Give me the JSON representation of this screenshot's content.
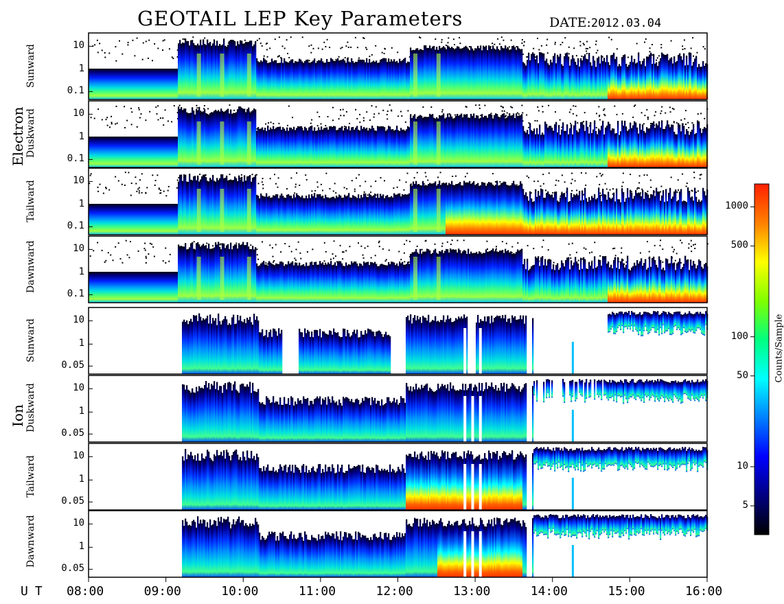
{
  "title": "GEOTAIL LEP Key Parameters",
  "date_label": "DATE:",
  "date_value": "2012.03.04",
  "ut_label": "UT",
  "chart_data": {
    "type": "heatmap",
    "title": "GEOTAIL LEP Key Parameters",
    "x_ticks": [
      "08:00",
      "09:00",
      "10:00",
      "11:00",
      "12:00",
      "13:00",
      "14:00",
      "15:00",
      "16:00"
    ],
    "groups": [
      {
        "name": "Electron",
        "panels": [
          {
            "label": "Sunward",
            "yticks": [
              "10",
              "1",
              "0.1"
            ]
          },
          {
            "label": "Duskward",
            "yticks": [
              "10",
              "1",
              "0.1"
            ]
          },
          {
            "label": "Tailward",
            "yticks": [
              "10",
              "1",
              "0.1"
            ]
          },
          {
            "label": "Dawnward",
            "yticks": [
              "10",
              "1",
              "0.1"
            ]
          }
        ]
      },
      {
        "name": "Ion",
        "panels": [
          {
            "label": "Sunward",
            "yticks": [
              "10",
              "1",
              "0.05"
            ]
          },
          {
            "label": "Duskward",
            "yticks": [
              "10",
              "1",
              "0.05"
            ]
          },
          {
            "label": "Tailward",
            "yticks": [
              "10",
              "1",
              "0.05"
            ]
          },
          {
            "label": "Dawnward",
            "yticks": [
              "10",
              "1",
              "0.05"
            ]
          }
        ]
      }
    ],
    "colorbar": {
      "label": "Counts/Sample",
      "scale": "log",
      "range": [
        3,
        1500
      ],
      "ticks": [
        "1000",
        "500",
        "100",
        "50",
        "10",
        "5"
      ],
      "colors": [
        "#000000",
        "#000080",
        "#0000ff",
        "#0080ff",
        "#00ffff",
        "#00ff80",
        "#80ff00",
        "#ffff00",
        "#ff8000",
        "#ff2000"
      ]
    }
  }
}
